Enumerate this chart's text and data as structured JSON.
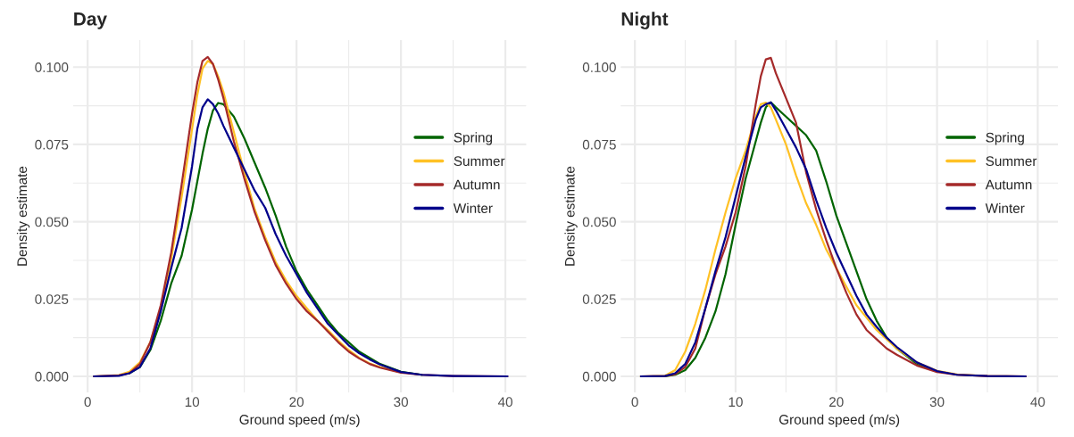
{
  "chart_data": [
    {
      "type": "line",
      "title": "Day",
      "xlabel": "Ground speed (m/s)",
      "ylabel": "Density estimate",
      "x": [
        0.6,
        3,
        4,
        5,
        6,
        7,
        8,
        9,
        10,
        10.5,
        11,
        11.5,
        12,
        12.5,
        13,
        14,
        15,
        16,
        17,
        18,
        19,
        20,
        21,
        22,
        23,
        24,
        25,
        26,
        27,
        28,
        30,
        32,
        35,
        40.2
      ],
      "series": [
        {
          "name": "Spring",
          "color": "#006400",
          "values": [
            null,
            null,
            0.001,
            0.003,
            0.0085,
            0.018,
            0.03,
            0.039,
            0.054,
            0.063,
            0.072,
            0.08,
            0.086,
            0.0884,
            0.088,
            0.084,
            0.077,
            0.069,
            0.061,
            0.052,
            0.042,
            0.034,
            0.028,
            0.023,
            0.018,
            0.014,
            0.011,
            0.008,
            0.006,
            0.004,
            0.0015,
            0.0005,
            null,
            null
          ]
        },
        {
          "name": "Summer",
          "color": "#ffc125",
          "values": [
            0,
            0.0004,
            0.0015,
            0.0045,
            0.011,
            0.022,
            0.038,
            0.058,
            0.08,
            0.091,
            0.0995,
            0.102,
            0.101,
            0.097,
            0.092,
            0.079,
            0.066,
            0.054,
            0.045,
            0.037,
            0.031,
            0.026,
            0.022,
            0.018,
            0.015,
            0.0115,
            0.0085,
            0.006,
            0.0042,
            0.003,
            0.0013,
            null,
            null,
            null
          ]
        },
        {
          "name": "Autumn",
          "color": "#a52a2a",
          "values": [
            0,
            0.0003,
            0.001,
            0.004,
            0.011,
            0.023,
            0.04,
            0.062,
            0.085,
            0.095,
            0.102,
            0.1033,
            0.101,
            0.096,
            0.09,
            0.076,
            0.064,
            0.053,
            0.044,
            0.036,
            0.03,
            0.025,
            0.021,
            0.018,
            0.0145,
            0.011,
            0.008,
            0.0058,
            0.004,
            0.0028,
            0.0012,
            0.0005,
            0.0001,
            0
          ]
        },
        {
          "name": "Winter",
          "color": "#00008b",
          "values": [
            0,
            0.0002,
            0.001,
            0.003,
            0.009,
            0.021,
            0.035,
            0.048,
            0.068,
            0.08,
            0.087,
            0.0896,
            0.088,
            0.085,
            0.081,
            0.074,
            0.067,
            0.06,
            0.0545,
            0.046,
            0.039,
            0.033,
            0.027,
            0.022,
            0.017,
            0.0135,
            0.01,
            0.0075,
            0.0055,
            0.0038,
            0.0014,
            0.0005,
            0.0001,
            0
          ]
        }
      ],
      "xlim": [
        -1.4,
        42
      ],
      "ylim": [
        -0.0052,
        0.1087
      ],
      "xticks": [
        0,
        10,
        20,
        30,
        40
      ],
      "yticks": [
        {
          "value": 0,
          "label": "0.000"
        },
        {
          "value": 0.025,
          "label": "0.025"
        },
        {
          "value": 0.05,
          "label": "0.050"
        },
        {
          "value": 0.075,
          "label": "0.075"
        },
        {
          "value": 0.1,
          "label": "0.100"
        }
      ],
      "grid": true,
      "legend": "right",
      "line_style": "solid"
    },
    {
      "type": "line",
      "title": "Night",
      "xlabel": "Ground speed (m/s)",
      "ylabel": "Density estimate",
      "x": [
        0.6,
        3,
        4,
        5,
        6,
        7,
        8,
        9,
        10,
        11,
        12,
        12.5,
        13,
        13.5,
        14,
        15,
        16,
        17,
        18,
        19,
        20,
        21,
        22,
        23,
        24,
        25,
        26,
        28,
        30,
        32,
        35,
        38.8
      ],
      "series": [
        {
          "name": "Spring",
          "color": "#006400",
          "values": [
            0,
            0,
            0.0005,
            0.002,
            0.006,
            0.0125,
            0.021,
            0.033,
            0.049,
            0.064,
            0.076,
            0.082,
            0.087,
            0.0886,
            0.087,
            0.084,
            0.081,
            0.078,
            0.073,
            0.063,
            0.052,
            0.043,
            0.034,
            0.025,
            0.018,
            0.0125,
            0.009,
            0.004,
            0.0015,
            null,
            null,
            null
          ]
        },
        {
          "name": "Summer",
          "color": "#ffc125",
          "values": [
            0,
            0.0002,
            0.002,
            0.008,
            0.017,
            0.028,
            0.041,
            0.053,
            0.064,
            0.073,
            0.084,
            0.088,
            0.0885,
            0.087,
            0.083,
            0.075,
            0.065,
            0.056,
            0.049,
            0.041,
            0.035,
            0.029,
            0.023,
            0.019,
            0.015,
            0.012,
            0.009,
            0.0045,
            0.0018,
            0.0006,
            0.0001,
            0
          ]
        },
        {
          "name": "Autumn",
          "color": "#a52a2a",
          "values": [
            0,
            0.0001,
            0.0007,
            0.003,
            0.009,
            0.022,
            0.033,
            0.042,
            0.053,
            0.068,
            0.088,
            0.097,
            0.1025,
            0.103,
            0.098,
            0.09,
            0.082,
            0.066,
            0.054,
            0.044,
            0.035,
            0.027,
            0.02,
            0.015,
            0.012,
            0.009,
            0.007,
            0.0035,
            0.0014,
            0.0005,
            0.0001,
            0
          ]
        },
        {
          "name": "Winter",
          "color": "#00008b",
          "values": [
            0,
            0.0001,
            0.001,
            0.004,
            0.011,
            0.022,
            0.034,
            0.045,
            0.058,
            0.071,
            0.083,
            0.087,
            0.088,
            0.0886,
            0.086,
            0.08,
            0.074,
            0.067,
            0.057,
            0.048,
            0.04,
            0.033,
            0.026,
            0.02,
            0.016,
            0.0125,
            0.0095,
            0.0045,
            0.0017,
            0.0005,
            0.0001,
            0
          ]
        }
      ],
      "xlim": [
        -1.4,
        42
      ],
      "ylim": [
        -0.0052,
        0.1087
      ],
      "xticks": [
        0,
        10,
        20,
        30,
        40
      ],
      "yticks": [
        {
          "value": 0,
          "label": "0.000"
        },
        {
          "value": 0.025,
          "label": "0.025"
        },
        {
          "value": 0.05,
          "label": "0.050"
        },
        {
          "value": 0.075,
          "label": "0.075"
        },
        {
          "value": 0.1,
          "label": "0.100"
        }
      ],
      "grid": true,
      "legend": "right",
      "line_style": "solid"
    }
  ]
}
